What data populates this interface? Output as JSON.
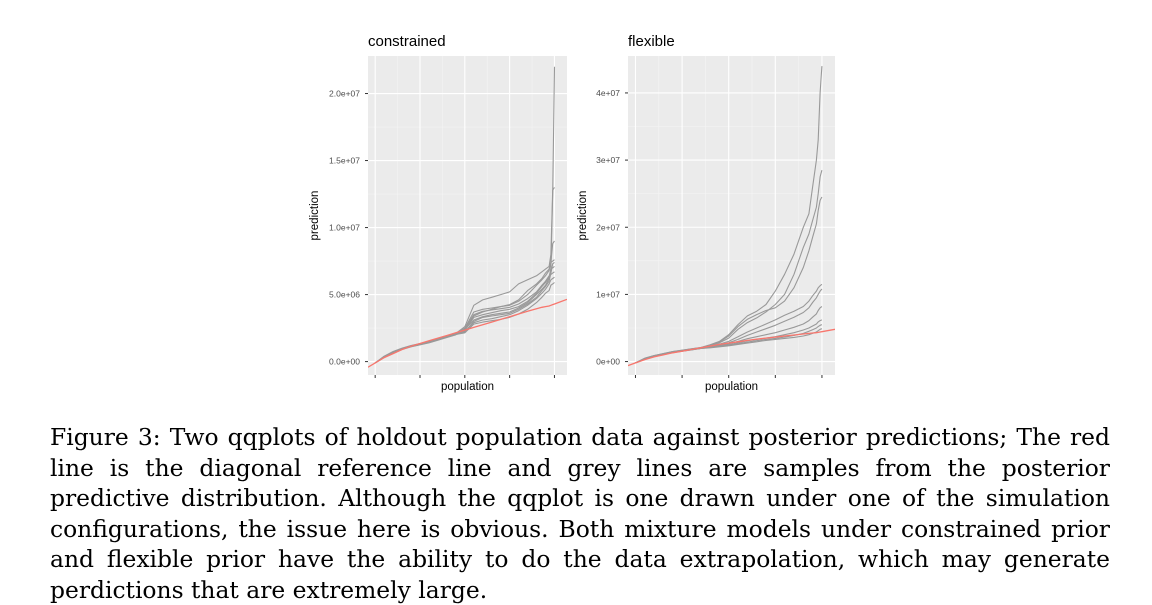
{
  "chart_data": [
    {
      "type": "line",
      "title": "constrained",
      "xlabel": "population",
      "ylabel": "prediction",
      "ylim": [
        -1000000,
        22800000
      ],
      "yticks": [
        0,
        5000000,
        10000000,
        15000000,
        20000000
      ],
      "ytick_labels": [
        "0.0e+00",
        "5.0e+06",
        "1.0e+07",
        "1.5e+07",
        "2.0e+07"
      ],
      "grid": true,
      "x": [
        0,
        0.05,
        0.1,
        0.15,
        0.2,
        0.25,
        0.3,
        0.35,
        0.4,
        0.45,
        0.5,
        0.55,
        0.6,
        0.65,
        0.7,
        0.75,
        0.8,
        0.85,
        0.9,
        0.93,
        0.95,
        0.97,
        0.98,
        0.99,
        1.0
      ],
      "reference_color": "#F8766D",
      "sample_color": "#999999",
      "reference": [
        -100000,
        300000,
        600000,
        900000,
        1150000,
        1350000,
        1550000,
        1750000,
        1950000,
        2150000,
        2350000,
        2550000,
        2750000,
        2950000,
        3150000,
        3350000,
        3550000,
        3750000,
        3950000,
        4050000,
        4100000,
        4150000,
        4200000,
        4250000,
        4300000
      ],
      "series": [
        {
          "values": [
            -100000,
            350000,
            700000,
            950000,
            1150000,
            1300000,
            1450000,
            1650000,
            1850000,
            2050000,
            2400000,
            3100000,
            3350000,
            3500000,
            3600000,
            3700000,
            4000000,
            4400000,
            5000000,
            5400000,
            5700000,
            6200000,
            7000000,
            12500000,
            22000000
          ]
        },
        {
          "values": [
            -100000,
            400000,
            750000,
            1000000,
            1200000,
            1350000,
            1500000,
            1700000,
            1900000,
            2100000,
            2600000,
            4200000,
            4600000,
            4800000,
            5000000,
            5200000,
            5800000,
            6100000,
            6400000,
            6700000,
            6900000,
            7100000,
            8000000,
            12800000,
            13000000
          ]
        },
        {
          "values": [
            -100000,
            300000,
            650000,
            900000,
            1100000,
            1250000,
            1400000,
            1600000,
            1800000,
            2000000,
            2300000,
            3400000,
            3700000,
            3900000,
            4100000,
            4250000,
            4600000,
            5300000,
            5800000,
            6200000,
            6600000,
            6900000,
            7400000,
            8800000,
            9000000
          ]
        },
        {
          "values": [
            -100000,
            380000,
            720000,
            980000,
            1180000,
            1320000,
            1480000,
            1680000,
            1880000,
            2080000,
            2500000,
            3700000,
            3900000,
            4000000,
            4100000,
            4200000,
            4500000,
            5000000,
            5700000,
            6100000,
            6400000,
            6800000,
            7400000,
            7500000,
            7600000
          ]
        },
        {
          "values": [
            -100000,
            330000,
            680000,
            940000,
            1140000,
            1290000,
            1440000,
            1640000,
            1840000,
            2040000,
            2200000,
            3000000,
            3300000,
            3400000,
            3500000,
            3600000,
            3900000,
            4300000,
            4800000,
            5300000,
            5600000,
            6000000,
            6600000,
            7300000,
            7400000
          ]
        },
        {
          "values": [
            -100000,
            360000,
            710000,
            970000,
            1170000,
            1310000,
            1470000,
            1670000,
            1870000,
            2070000,
            2350000,
            3300000,
            3500000,
            3650000,
            3800000,
            3900000,
            4100000,
            4500000,
            5100000,
            5600000,
            5900000,
            6300000,
            6900000,
            7000000,
            7100000
          ]
        },
        {
          "values": [
            -100000,
            340000,
            690000,
            950000,
            1150000,
            1300000,
            1450000,
            1650000,
            1850000,
            2050000,
            2250000,
            2900000,
            3100000,
            3200000,
            3350000,
            3500000,
            3800000,
            4200000,
            4700000,
            5100000,
            5400000,
            5800000,
            6100000,
            6200000,
            6300000
          ]
        },
        {
          "values": [
            -100000,
            370000,
            700000,
            960000,
            1160000,
            1310000,
            1460000,
            1660000,
            1860000,
            2060000,
            2450000,
            3500000,
            3750000,
            3850000,
            3950000,
            4050000,
            4300000,
            4700000,
            5200000,
            5700000,
            6000000,
            6400000,
            6500000,
            6600000,
            6700000
          ]
        },
        {
          "values": [
            -100000,
            320000,
            660000,
            920000,
            1120000,
            1270000,
            1420000,
            1620000,
            1820000,
            2020000,
            2150000,
            2800000,
            2950000,
            3050000,
            3150000,
            3300000,
            3550000,
            3900000,
            4400000,
            4800000,
            5100000,
            5300000,
            5700000,
            5800000,
            5900000
          ]
        }
      ]
    },
    {
      "type": "line",
      "title": "flexible",
      "xlabel": "population",
      "ylabel": "prediction",
      "ylim": [
        -2000000,
        45500000
      ],
      "yticks": [
        0,
        10000000,
        20000000,
        30000000,
        40000000
      ],
      "ytick_labels": [
        "0e+00",
        "1e+07",
        "2e+07",
        "3e+07",
        "4e+07"
      ],
      "grid": true,
      "x": [
        0,
        0.05,
        0.1,
        0.15,
        0.2,
        0.25,
        0.3,
        0.35,
        0.4,
        0.45,
        0.5,
        0.55,
        0.6,
        0.65,
        0.7,
        0.75,
        0.8,
        0.85,
        0.9,
        0.93,
        0.95,
        0.97,
        0.98,
        0.99,
        1.0
      ],
      "reference_color": "#F8766D",
      "sample_color": "#999999",
      "reference": [
        -200000,
        300000,
        700000,
        1000000,
        1300000,
        1550000,
        1800000,
        2050000,
        2300000,
        2550000,
        2750000,
        2950000,
        3150000,
        3350000,
        3500000,
        3650000,
        3800000,
        3950000,
        4100000,
        4200000,
        4250000,
        4300000,
        4350000,
        4400000,
        4450000
      ],
      "series": [
        {
          "values": [
            -200000,
            500000,
            900000,
            1200000,
            1500000,
            1700000,
            1900000,
            2100000,
            2500000,
            3000000,
            4000000,
            5500000,
            6800000,
            7500000,
            8500000,
            10500000,
            13000000,
            16000000,
            20000000,
            22000000,
            26000000,
            30000000,
            33000000,
            40000000,
            44000000
          ]
        },
        {
          "values": [
            -200000,
            450000,
            850000,
            1150000,
            1450000,
            1650000,
            1850000,
            2050000,
            2400000,
            2800000,
            3500000,
            4800000,
            5800000,
            6500000,
            7400000,
            8500000,
            10000000,
            13000000,
            17000000,
            19000000,
            21000000,
            23000000,
            25000000,
            27500000,
            28500000
          ]
        },
        {
          "values": [
            -200000,
            480000,
            880000,
            1180000,
            1480000,
            1680000,
            1880000,
            2080000,
            2450000,
            2900000,
            3800000,
            5200000,
            6300000,
            7000000,
            7600000,
            8000000,
            9000000,
            11000000,
            14000000,
            16500000,
            18500000,
            20500000,
            22500000,
            24000000,
            24500000
          ]
        },
        {
          "values": [
            -200000,
            420000,
            820000,
            1120000,
            1420000,
            1620000,
            1820000,
            2020000,
            2300000,
            2600000,
            3000000,
            3700000,
            4400000,
            5000000,
            5600000,
            6200000,
            6900000,
            7500000,
            8200000,
            9000000,
            9800000,
            10500000,
            11000000,
            11300000,
            11500000
          ]
        },
        {
          "values": [
            -200000,
            400000,
            800000,
            1100000,
            1400000,
            1600000,
            1800000,
            2000000,
            2250000,
            2500000,
            2800000,
            3300000,
            3900000,
            4400000,
            4900000,
            5400000,
            6000000,
            6600000,
            7300000,
            8000000,
            8800000,
            9500000,
            10000000,
            10500000,
            10800000
          ]
        },
        {
          "values": [
            -200000,
            380000,
            780000,
            1080000,
            1380000,
            1580000,
            1780000,
            1980000,
            2200000,
            2400000,
            2650000,
            3000000,
            3400000,
            3700000,
            4000000,
            4300000,
            4700000,
            5100000,
            5600000,
            6100000,
            6600000,
            7100000,
            7600000,
            8000000,
            8200000
          ]
        },
        {
          "values": [
            -200000,
            360000,
            760000,
            1060000,
            1360000,
            1560000,
            1760000,
            1960000,
            2150000,
            2300000,
            2500000,
            2800000,
            3100000,
            3300000,
            3500000,
            3700000,
            4000000,
            4300000,
            4700000,
            5000000,
            5300000,
            5600000,
            5900000,
            6100000,
            6200000
          ]
        },
        {
          "values": [
            -200000,
            350000,
            750000,
            1050000,
            1350000,
            1550000,
            1750000,
            1950000,
            2100000,
            2250000,
            2400000,
            2650000,
            2900000,
            3100000,
            3300000,
            3450000,
            3650000,
            3900000,
            4200000,
            4500000,
            4750000,
            5000000,
            5200000,
            5400000,
            5500000
          ]
        },
        {
          "values": [
            -200000,
            340000,
            740000,
            1040000,
            1340000,
            1540000,
            1740000,
            1940000,
            2050000,
            2200000,
            2350000,
            2550000,
            2750000,
            2950000,
            3150000,
            3300000,
            3450000,
            3600000,
            3800000,
            4000000,
            4200000,
            4400000,
            4600000,
            4800000,
            4900000
          ]
        }
      ]
    }
  ],
  "caption": "Figure 3: Two qqplots of holdout population data against posterior predictions; The red line is the diagonal reference line and grey lines are samples from the posterior predictive distribution. Although the qqplot is one drawn under one of the simulation configurations, the issue here is obvious. Both mixture models under constrained prior and flexible prior have the ability to do the data extrapolation, which may generate perdictions that are extremely large."
}
